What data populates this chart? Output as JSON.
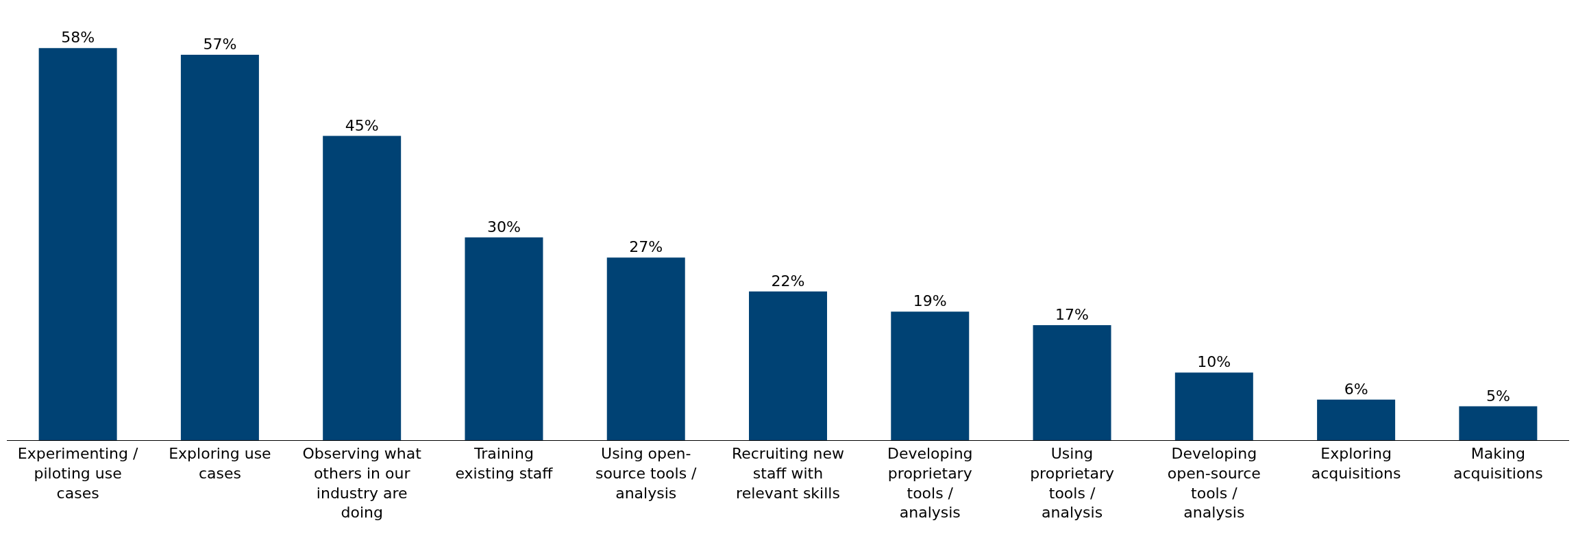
{
  "chart_data": {
    "type": "bar",
    "categories": [
      "Experimenting / piloting use cases",
      "Exploring use cases",
      "Observing what others in our industry are doing",
      "Training existing staff",
      "Using open-source tools / analysis",
      "Recruiting new staff with relevant skills",
      "Developing proprietary tools / analysis",
      "Using proprietary tools / analysis",
      "Developing open-source tools / analysis",
      "Exploring acquisitions",
      "Making acquisitions"
    ],
    "values": [
      58,
      57,
      45,
      30,
      27,
      22,
      19,
      17,
      10,
      6,
      5
    ],
    "value_labels": [
      "58%",
      "57%",
      "45%",
      "30%",
      "27%",
      "22%",
      "19%",
      "17%",
      "10%",
      "6%",
      "5%"
    ],
    "color": "#004274",
    "legend": false
  }
}
